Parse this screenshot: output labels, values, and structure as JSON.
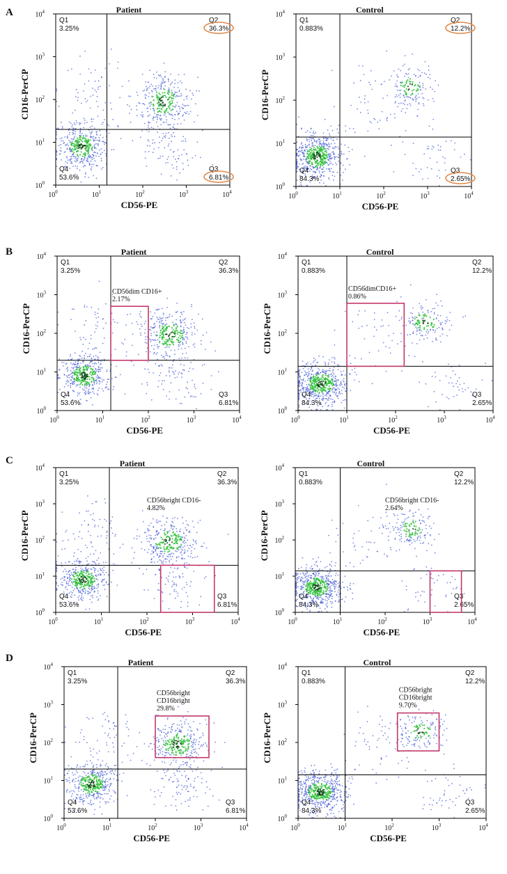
{
  "figure": {
    "row_letters": [
      "A",
      "B",
      "C",
      "D"
    ],
    "colors": {
      "dots": "#4a5fd8",
      "dots_dense": "#2fbf3a",
      "dots_core": "#0a4a12",
      "gate": "#c2386a",
      "highlight_ellipse": "#e08a4a",
      "frame": "#000000",
      "background": "#ffffff"
    }
  },
  "chart_data": [
    {
      "id": "A-patient",
      "row": "A",
      "title": "Patient",
      "type": "scatter",
      "xlabel": "CD56-PE",
      "ylabel": "CD16-PerCP",
      "xlim": [
        1,
        10000
      ],
      "ylim": [
        1,
        10000
      ],
      "scale": "log10",
      "tick_base": "10",
      "tick_exponents": [
        "0",
        "1",
        "2",
        "3",
        "4"
      ],
      "gates": {
        "x": 15,
        "y": 20
      },
      "quadrants": {
        "Q1": "3.25%",
        "Q2": "36.3%",
        "Q3": "6.81%",
        "Q4": "53.6%"
      },
      "quadrant_names": {
        "Q1": "Q1",
        "Q2": "Q2",
        "Q3": "Q3",
        "Q4": "Q4"
      },
      "highlighted_quadrants": [
        "Q2",
        "Q3"
      ],
      "clusters": [
        {
          "x": 4,
          "y": 8,
          "spread": 0.28,
          "count": 420,
          "dense": true
        },
        {
          "x": 300,
          "y": 90,
          "spread": 0.32,
          "count": 330,
          "dense": true
        },
        {
          "x": 8,
          "y": 150,
          "spread": 0.45,
          "count": 70,
          "dense": false
        },
        {
          "x": 400,
          "y": 8,
          "spread": 0.35,
          "count": 90,
          "dense": false
        }
      ]
    },
    {
      "id": "A-control",
      "row": "A",
      "title": "Control",
      "type": "scatter",
      "xlabel": "CD56-PE",
      "ylabel": "CD16-PerCP",
      "xlim": [
        1,
        10000
      ],
      "ylim": [
        1,
        10000
      ],
      "scale": "log10",
      "tick_base": "10",
      "tick_exponents": [
        "0",
        "1",
        "2",
        "3",
        "4"
      ],
      "gates": {
        "x": 10,
        "y": 14
      },
      "quadrants": {
        "Q1": "0.883%",
        "Q2": "12.2%",
        "Q3": "2.65%",
        "Q4": "84.3%"
      },
      "quadrant_names": {
        "Q1": "Q1",
        "Q2": "Q2",
        "Q3": "Q3",
        "Q4": "Q4"
      },
      "highlighted_quadrants": [
        "Q2",
        "Q3"
      ],
      "clusters": [
        {
          "x": 3,
          "y": 5,
          "spread": 0.28,
          "count": 560,
          "dense": true
        },
        {
          "x": 400,
          "y": 200,
          "spread": 0.25,
          "count": 150,
          "dense": true
        },
        {
          "x": 60,
          "y": 90,
          "spread": 0.5,
          "count": 60,
          "dense": false
        },
        {
          "x": 1500,
          "y": 5,
          "spread": 0.35,
          "count": 45,
          "dense": false
        }
      ]
    },
    {
      "id": "B-patient",
      "row": "B",
      "title": "Patient",
      "type": "scatter",
      "xlabel": "CD56-PE",
      "ylabel": "CD16-PerCP",
      "xlim": [
        1,
        10000
      ],
      "ylim": [
        1,
        10000
      ],
      "scale": "log10",
      "tick_base": "10",
      "tick_exponents": [
        "0",
        "1",
        "2",
        "3",
        "4"
      ],
      "gates": {
        "x": 15,
        "y": 20
      },
      "quadrants": {
        "Q1": "3.25%",
        "Q2": "36.3%",
        "Q3": "6.81%",
        "Q4": "53.6%"
      },
      "quadrant_names": {
        "Q1": "Q1",
        "Q2": "Q2",
        "Q3": "Q3",
        "Q4": "Q4"
      },
      "highlighted_quadrants": [],
      "gate_box": {
        "label": "CD56dim CD16+",
        "value": "2.17%",
        "x": [
          15,
          100
        ],
        "y": [
          20,
          500
        ]
      },
      "clusters": [
        {
          "x": 4,
          "y": 8,
          "spread": 0.28,
          "count": 420,
          "dense": true
        },
        {
          "x": 300,
          "y": 90,
          "spread": 0.32,
          "count": 330,
          "dense": true
        },
        {
          "x": 8,
          "y": 150,
          "spread": 0.45,
          "count": 70,
          "dense": false
        },
        {
          "x": 400,
          "y": 8,
          "spread": 0.35,
          "count": 90,
          "dense": false
        }
      ]
    },
    {
      "id": "B-control",
      "row": "B",
      "title": "Control",
      "type": "scatter",
      "xlabel": "CD56-PE",
      "ylabel": "CD16-PerCP",
      "xlim": [
        1,
        10000
      ],
      "ylim": [
        1,
        10000
      ],
      "scale": "log10",
      "tick_base": "10",
      "tick_exponents": [
        "0",
        "1",
        "2",
        "3",
        "4"
      ],
      "gates": {
        "x": 10,
        "y": 14
      },
      "quadrants": {
        "Q1": "0.883%",
        "Q2": "12.2%",
        "Q3": "2.65%",
        "Q4": "84.3%"
      },
      "quadrant_names": {
        "Q1": "Q1",
        "Q2": "Q2",
        "Q3": "Q3",
        "Q4": "Q4"
      },
      "highlighted_quadrants": [],
      "gate_box": {
        "label": "CD56dimCD16+",
        "value": "0.86%",
        "x": [
          10,
          150
        ],
        "y": [
          14,
          600
        ]
      },
      "clusters": [
        {
          "x": 3,
          "y": 5,
          "spread": 0.28,
          "count": 560,
          "dense": true
        },
        {
          "x": 400,
          "y": 200,
          "spread": 0.25,
          "count": 150,
          "dense": true
        },
        {
          "x": 60,
          "y": 90,
          "spread": 0.5,
          "count": 60,
          "dense": false
        },
        {
          "x": 1500,
          "y": 5,
          "spread": 0.35,
          "count": 45,
          "dense": false
        }
      ]
    },
    {
      "id": "C-patient",
      "row": "C",
      "title": "Patient",
      "type": "scatter",
      "xlabel": "CD56-PE",
      "ylabel": "CD16-PerCP",
      "xlim": [
        1,
        10000
      ],
      "ylim": [
        1,
        10000
      ],
      "scale": "log10",
      "tick_base": "10",
      "tick_exponents": [
        "0",
        "1",
        "2",
        "3",
        "4"
      ],
      "gates": {
        "x": 15,
        "y": 20
      },
      "quadrants": {
        "Q1": "3.25%",
        "Q2": "36.3%",
        "Q3": "6.81%",
        "Q4": "53.6%"
      },
      "quadrant_names": {
        "Q1": "Q1",
        "Q2": "Q2",
        "Q3": "Q3",
        "Q4": "Q4"
      },
      "highlighted_quadrants": [],
      "gate_box": {
        "label": "CD56bright CD16-",
        "value": "4.82%",
        "x": [
          200,
          3000
        ],
        "y": [
          1,
          20
        ],
        "label_at": [
          100,
          1100
        ]
      },
      "clusters": [
        {
          "x": 4,
          "y": 8,
          "spread": 0.28,
          "count": 420,
          "dense": true
        },
        {
          "x": 300,
          "y": 90,
          "spread": 0.32,
          "count": 330,
          "dense": true
        },
        {
          "x": 8,
          "y": 150,
          "spread": 0.45,
          "count": 70,
          "dense": false
        },
        {
          "x": 400,
          "y": 8,
          "spread": 0.35,
          "count": 90,
          "dense": false
        }
      ]
    },
    {
      "id": "C-control",
      "row": "C",
      "title": "Control",
      "type": "scatter",
      "xlabel": "CD56-PE",
      "ylabel": "CD16-PerCP",
      "xlim": [
        1,
        10000
      ],
      "ylim": [
        1,
        10000
      ],
      "scale": "log10",
      "tick_base": "10",
      "tick_exponents": [
        "0",
        "1",
        "2",
        "3",
        "4"
      ],
      "gates": {
        "x": 10,
        "y": 14
      },
      "quadrants": {
        "Q1": "0.883%",
        "Q2": "12.2%",
        "Q3": "2.65%",
        "Q4": "84.3%"
      },
      "quadrant_names": {
        "Q1": "Q1",
        "Q2": "Q2",
        "Q3": "Q3",
        "Q4": "Q4"
      },
      "highlighted_quadrants": [],
      "gate_box": {
        "label": "CD56bright CD16-",
        "value": "2.64%",
        "x": [
          1000,
          5000
        ],
        "y": [
          1,
          14
        ],
        "label_at": [
          100,
          1100
        ]
      },
      "clusters": [
        {
          "x": 3,
          "y": 5,
          "spread": 0.28,
          "count": 560,
          "dense": true
        },
        {
          "x": 400,
          "y": 200,
          "spread": 0.25,
          "count": 150,
          "dense": true
        },
        {
          "x": 60,
          "y": 90,
          "spread": 0.5,
          "count": 60,
          "dense": false
        },
        {
          "x": 1500,
          "y": 5,
          "spread": 0.35,
          "count": 45,
          "dense": false
        }
      ]
    },
    {
      "id": "D-patient",
      "row": "D",
      "title": "Patient",
      "type": "scatter",
      "xlabel": "CD56-PE",
      "ylabel": "CD16-PerCP",
      "xlim": [
        1,
        10000
      ],
      "ylim": [
        1,
        10000
      ],
      "scale": "log10",
      "tick_base": "10",
      "tick_exponents": [
        "0",
        "1",
        "2",
        "3",
        "4"
      ],
      "gates": {
        "x": 15,
        "y": 20
      },
      "quadrants": {
        "Q1": "3.25%",
        "Q2": "36.3%",
        "Q3": "6.81%",
        "Q4": "53.6%"
      },
      "quadrant_names": {
        "Q1": "Q1",
        "Q2": "Q2",
        "Q3": "Q3",
        "Q4": "Q4"
      },
      "highlighted_quadrants": [],
      "gate_box": {
        "label": "CD56bright",
        "label2": "CD16bright",
        "value": "29.8%",
        "x": [
          100,
          1500
        ],
        "y": [
          40,
          500
        ]
      },
      "clusters": [
        {
          "x": 4,
          "y": 8,
          "spread": 0.28,
          "count": 420,
          "dense": true
        },
        {
          "x": 300,
          "y": 90,
          "spread": 0.32,
          "count": 330,
          "dense": true
        },
        {
          "x": 8,
          "y": 150,
          "spread": 0.45,
          "count": 70,
          "dense": false
        },
        {
          "x": 400,
          "y": 8,
          "spread": 0.35,
          "count": 90,
          "dense": false
        }
      ]
    },
    {
      "id": "D-control",
      "row": "D",
      "title": "Control",
      "type": "scatter",
      "xlabel": "CD56-PE",
      "ylabel": "CD16-PerCP",
      "xlim": [
        1,
        10000
      ],
      "ylim": [
        1,
        10000
      ],
      "scale": "log10",
      "tick_base": "10",
      "tick_exponents": [
        "0",
        "1",
        "2",
        "3",
        "4"
      ],
      "gates": {
        "x": 10,
        "y": 14
      },
      "quadrants": {
        "Q1": "0.883%",
        "Q2": "12.2%",
        "Q3": "2.65%",
        "Q4": "84.3%"
      },
      "quadrant_names": {
        "Q1": "Q1",
        "Q2": "Q2",
        "Q3": "Q3",
        "Q4": "Q4"
      },
      "highlighted_quadrants": [],
      "gate_box": {
        "label": "CD56bright",
        "label2": "CD16bright",
        "value": "9.70%",
        "x": [
          130,
          1000
        ],
        "y": [
          60,
          600
        ]
      },
      "clusters": [
        {
          "x": 3,
          "y": 5,
          "spread": 0.28,
          "count": 560,
          "dense": true
        },
        {
          "x": 400,
          "y": 200,
          "spread": 0.25,
          "count": 150,
          "dense": true
        },
        {
          "x": 60,
          "y": 90,
          "spread": 0.5,
          "count": 60,
          "dense": false
        },
        {
          "x": 1500,
          "y": 5,
          "spread": 0.35,
          "count": 45,
          "dense": false
        }
      ]
    }
  ]
}
